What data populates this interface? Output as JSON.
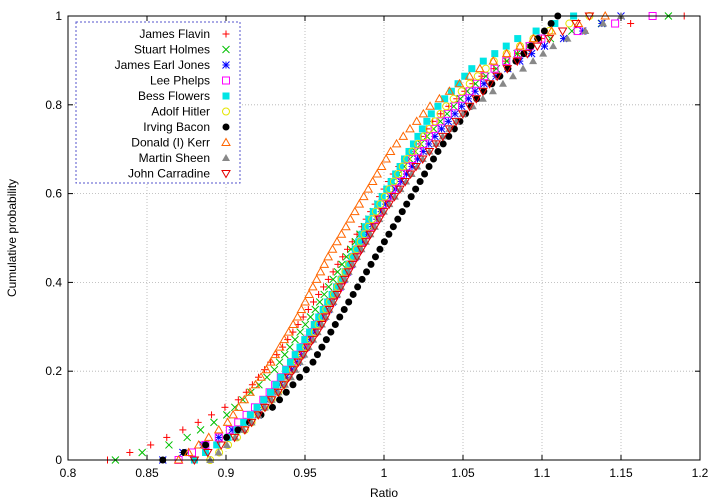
{
  "chart_data": {
    "type": "scatter",
    "title": "",
    "xlabel": "Ratio",
    "ylabel": "Cumulative probability",
    "xlim": [
      0.8,
      1.2
    ],
    "ylim": [
      0,
      1
    ],
    "xticks": [
      "0.8",
      "0.85",
      "0.9",
      "0.95",
      "1",
      "1.05",
      "1.1",
      "1.15",
      "1.2"
    ],
    "yticks": [
      "0",
      "0.2",
      "0.4",
      "0.6",
      "0.8",
      "1"
    ],
    "grid": true,
    "legend_position": "top-left",
    "series": [
      {
        "name": "James Flavin",
        "color": "#ff0000",
        "marker": "plus",
        "anchors": [
          [
            0.825,
            0.0
          ],
          [
            0.85,
            0.03
          ],
          [
            0.88,
            0.08
          ],
          [
            0.91,
            0.14
          ],
          [
            0.935,
            0.25
          ],
          [
            0.96,
            0.38
          ],
          [
            0.985,
            0.52
          ],
          [
            1.005,
            0.64
          ],
          [
            1.03,
            0.76
          ],
          [
            1.06,
            0.86
          ],
          [
            1.1,
            0.95
          ],
          [
            1.15,
            0.98
          ],
          [
            1.19,
            1.0
          ]
        ]
      },
      {
        "name": "Stuart Holmes",
        "color": "#00c000",
        "marker": "x",
        "anchors": [
          [
            0.83,
            0.0
          ],
          [
            0.87,
            0.04
          ],
          [
            0.9,
            0.1
          ],
          [
            0.93,
            0.2
          ],
          [
            0.955,
            0.33
          ],
          [
            0.98,
            0.48
          ],
          [
            1.0,
            0.6
          ],
          [
            1.025,
            0.72
          ],
          [
            1.055,
            0.84
          ],
          [
            1.09,
            0.93
          ],
          [
            1.13,
            0.98
          ],
          [
            1.18,
            1.0
          ]
        ]
      },
      {
        "name": "James Earl Jones",
        "color": "#0000ff",
        "marker": "star",
        "anchors": [
          [
            0.86,
            0.0
          ],
          [
            0.89,
            0.04
          ],
          [
            0.92,
            0.1
          ],
          [
            0.945,
            0.22
          ],
          [
            0.965,
            0.34
          ],
          [
            0.985,
            0.48
          ],
          [
            1.005,
            0.6
          ],
          [
            1.03,
            0.72
          ],
          [
            1.06,
            0.84
          ],
          [
            1.1,
            0.93
          ],
          [
            1.15,
            1.0
          ]
        ]
      },
      {
        "name": "Lee Phelps",
        "color": "#ff00ff",
        "marker": "square",
        "anchors": [
          [
            0.87,
            0.0
          ],
          [
            0.9,
            0.06
          ],
          [
            0.925,
            0.14
          ],
          [
            0.95,
            0.26
          ],
          [
            0.97,
            0.38
          ],
          [
            0.99,
            0.52
          ],
          [
            1.01,
            0.64
          ],
          [
            1.035,
            0.76
          ],
          [
            1.065,
            0.87
          ],
          [
            1.1,
            0.95
          ],
          [
            1.17,
            1.0
          ]
        ]
      },
      {
        "name": "Bess Flowers",
        "color": "#00e5e5",
        "marker": "square-filled",
        "anchors": [
          [
            0.88,
            0.0
          ],
          [
            0.905,
            0.06
          ],
          [
            0.93,
            0.16
          ],
          [
            0.955,
            0.3
          ],
          [
            0.975,
            0.42
          ],
          [
            0.99,
            0.54
          ],
          [
            1.01,
            0.66
          ],
          [
            1.03,
            0.78
          ],
          [
            1.055,
            0.88
          ],
          [
            1.085,
            0.95
          ],
          [
            1.12,
            1.0
          ]
        ]
      },
      {
        "name": "Adolf Hitler",
        "color": "#e5e500",
        "marker": "circle",
        "anchors": [
          [
            0.89,
            0.0
          ],
          [
            0.91,
            0.06
          ],
          [
            0.935,
            0.16
          ],
          [
            0.955,
            0.28
          ],
          [
            0.975,
            0.42
          ],
          [
            0.995,
            0.56
          ],
          [
            1.015,
            0.68
          ],
          [
            1.04,
            0.8
          ],
          [
            1.07,
            0.9
          ],
          [
            1.1,
            0.96
          ],
          [
            1.13,
            1.0
          ]
        ]
      },
      {
        "name": "Irving Bacon",
        "color": "#000000",
        "marker": "circle-filled",
        "anchors": [
          [
            0.86,
            0.0
          ],
          [
            0.9,
            0.05
          ],
          [
            0.93,
            0.12
          ],
          [
            0.955,
            0.22
          ],
          [
            0.975,
            0.34
          ],
          [
            0.995,
            0.46
          ],
          [
            1.015,
            0.58
          ],
          [
            1.035,
            0.7
          ],
          [
            1.06,
            0.82
          ],
          [
            1.09,
            0.92
          ],
          [
            1.11,
            1.0
          ]
        ]
      },
      {
        "name": "Donald (I) Kerr",
        "color": "#ff6600",
        "marker": "triangle",
        "anchors": [
          [
            0.87,
            0.0
          ],
          [
            0.9,
            0.08
          ],
          [
            0.925,
            0.2
          ],
          [
            0.945,
            0.32
          ],
          [
            0.965,
            0.46
          ],
          [
            0.985,
            0.58
          ],
          [
            1.005,
            0.7
          ],
          [
            1.03,
            0.8
          ],
          [
            1.06,
            0.88
          ],
          [
            1.1,
            0.96
          ],
          [
            1.14,
            1.0
          ]
        ]
      },
      {
        "name": "Martin Sheen",
        "color": "#888888",
        "marker": "triangle-filled",
        "anchors": [
          [
            0.89,
            0.0
          ],
          [
            0.915,
            0.08
          ],
          [
            0.94,
            0.18
          ],
          [
            0.96,
            0.3
          ],
          [
            0.98,
            0.44
          ],
          [
            1.0,
            0.56
          ],
          [
            1.025,
            0.68
          ],
          [
            1.05,
            0.78
          ],
          [
            1.08,
            0.86
          ],
          [
            1.11,
            0.94
          ],
          [
            1.15,
            1.0
          ]
        ]
      },
      {
        "name": "John Carradine",
        "color": "#e60000",
        "marker": "triangle-down",
        "anchors": [
          [
            0.88,
            0.0
          ],
          [
            0.91,
            0.06
          ],
          [
            0.935,
            0.16
          ],
          [
            0.96,
            0.3
          ],
          [
            0.98,
            0.44
          ],
          [
            1.0,
            0.56
          ],
          [
            1.02,
            0.66
          ],
          [
            1.045,
            0.76
          ],
          [
            1.07,
            0.86
          ],
          [
            1.1,
            0.94
          ],
          [
            1.13,
            1.0
          ]
        ]
      }
    ]
  }
}
